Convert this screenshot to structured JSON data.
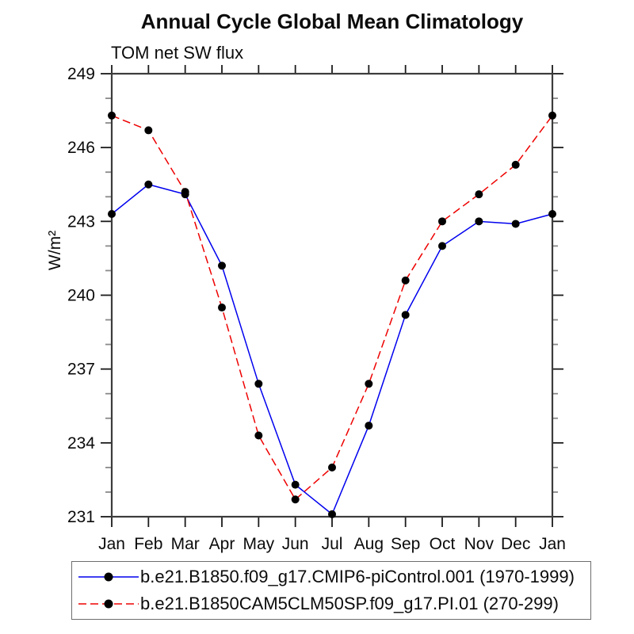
{
  "title": "Annual Cycle Global Mean Climatology",
  "subtitle": "TOM net SW flux",
  "chart_data": {
    "type": "line",
    "title": "Annual Cycle Global Mean Climatology",
    "subtitle": "TOM net SW flux",
    "xlabel": "",
    "ylabel": "W/m²",
    "ylim": [
      231,
      249
    ],
    "y_major_ticks": [
      231,
      234,
      237,
      240,
      243,
      246,
      249
    ],
    "y_minor_step": 1,
    "grid": false,
    "legend_position": "bottom",
    "categories": [
      "Jan",
      "Feb",
      "Mar",
      "Apr",
      "May",
      "Jun",
      "Jul",
      "Aug",
      "Sep",
      "Oct",
      "Nov",
      "Dec",
      "Jan"
    ],
    "series": [
      {
        "name": "b.e21.B1850.f09_g17.CMIP6-piControl.001 (1970-1999)",
        "color": "#0000ee",
        "line_style": "solid",
        "marker": "filled-circle",
        "marker_color": "#000000",
        "values": [
          243.3,
          244.5,
          244.1,
          241.2,
          236.4,
          232.3,
          231.1,
          234.7,
          239.2,
          242.0,
          243.0,
          242.9,
          243.3
        ]
      },
      {
        "name": "b.e21.B1850CAM5CLM50SP.f09_g17.PI.01 (270-299)",
        "color": "#ee0000",
        "line_style": "dashed",
        "marker": "filled-circle",
        "marker_color": "#000000",
        "values": [
          247.3,
          246.7,
          244.2,
          239.5,
          234.3,
          231.7,
          233.0,
          236.4,
          240.6,
          243.0,
          244.1,
          245.3,
          247.3
        ]
      }
    ]
  }
}
